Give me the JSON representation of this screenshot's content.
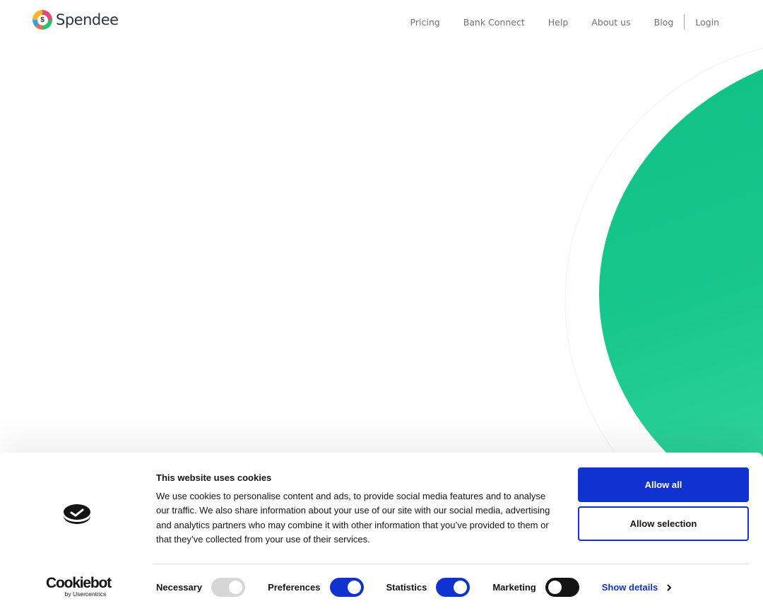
{
  "header": {
    "logo_text": "Spendee",
    "logo_symbol": "$",
    "nav": [
      "Pricing",
      "Bank Connect",
      "Help",
      "About us",
      "Blog"
    ],
    "login": "Login"
  },
  "cookie_banner": {
    "brand": "Cookiebot",
    "brand_sub": "by Usercentrics",
    "title": "This website uses cookies",
    "body": "We use cookies to personalise content and ads, to provide social media features and to analyse our traffic. We also share information about your use of our site with our social media, advertising and analytics partners who may combine it with other information that you’ve provided to them or that they’ve collected from your use of their services.",
    "allow_all": "Allow all",
    "allow_selection": "Allow selection",
    "toggles": [
      {
        "label": "Necessary",
        "on": true,
        "disabled": true,
        "color": "#d6d6d6"
      },
      {
        "label": "Preferences",
        "on": true,
        "color": "#1032cf"
      },
      {
        "label": "Statistics",
        "on": true,
        "color": "#1032cf"
      },
      {
        "label": "Marketing",
        "on": false,
        "color": "#141414"
      }
    ],
    "show_details": "Show details"
  },
  "colors": {
    "accent": "#1032cf",
    "brand_green": "#14c48a"
  }
}
